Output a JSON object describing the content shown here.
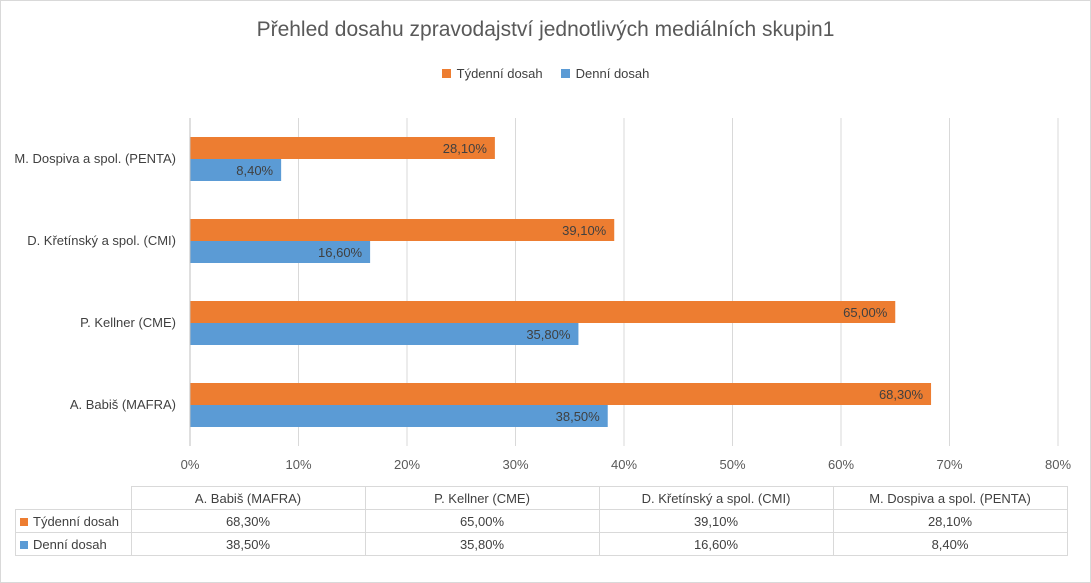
{
  "chart_data": {
    "type": "bar",
    "orientation": "horizontal",
    "title": "Přehled dosahu zpravodajství jednotlivých mediálních skupin1",
    "categories": [
      "M. Dospiva a spol. (PENTA)",
      "D. Křetínský a spol. (CMI)",
      "P. Kellner (CME)",
      "A. Babiš (MAFRA)"
    ],
    "series": [
      {
        "name": "Týdenní dosah",
        "color": "#ed7d31",
        "values": [
          28.1,
          39.1,
          65.0,
          68.3
        ],
        "labels": [
          "28,10%",
          "39,10%",
          "65,00%",
          "68,30%"
        ]
      },
      {
        "name": "Denní dosah",
        "color": "#5b9bd5",
        "values": [
          8.4,
          16.6,
          35.8,
          38.5
        ],
        "labels": [
          "8,40%",
          "16,60%",
          "35,80%",
          "38,50%"
        ]
      }
    ],
    "xlim": [
      0,
      80
    ],
    "xticks": [
      "0%",
      "10%",
      "20%",
      "30%",
      "40%",
      "50%",
      "60%",
      "70%",
      "80%"
    ],
    "grid": true,
    "legend_position": "top"
  },
  "data_table": {
    "columns": [
      "A. Babiš (MAFRA)",
      "P. Kellner (CME)",
      "D. Křetínský a spol. (CMI)",
      "M. Dospiva a spol. (PENTA)"
    ],
    "rows": [
      {
        "name": "Týdenní dosah",
        "color": "#ed7d31",
        "values": [
          "68,30%",
          "65,00%",
          "39,10%",
          "28,10%"
        ]
      },
      {
        "name": "Denní dosah",
        "color": "#5b9bd5",
        "values": [
          "38,50%",
          "35,80%",
          "16,60%",
          "8,40%"
        ]
      }
    ]
  }
}
